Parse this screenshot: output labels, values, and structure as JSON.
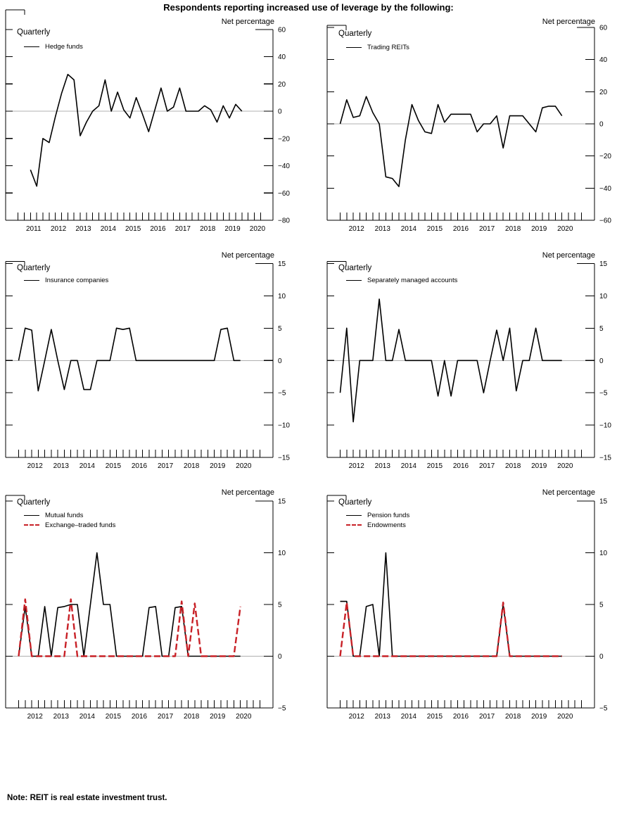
{
  "title": "Respondents reporting increased use of leverage by the following:",
  "note": "Note:  REIT is real estate investment trust.",
  "chart_data": {
    "type": "line",
    "frequency": "Quarterly",
    "colors": {
      "line_black": "#000000",
      "line_red": "#c82127",
      "zero_line": "#b0b0b0"
    },
    "panels": [
      {
        "id": "hedge-funds",
        "ylabel": "Net percentage",
        "freq": "Quarterly",
        "ylim": [
          -80,
          60
        ],
        "ystep": 20,
        "grid": "zero-line-only",
        "legend_position": "top-left",
        "x_axis": {
          "start": "2010Q2",
          "end": "2021Q1",
          "year_labels": [
            2011,
            2012,
            2013,
            2014,
            2015,
            2016,
            2017,
            2018,
            2019,
            2020
          ]
        },
        "series": [
          {
            "name": "Hedge funds",
            "color": "#000000",
            "dash": false,
            "start": "2011Q2",
            "values": [
              -43,
              -55,
              -20,
              -23,
              -4,
              13,
              27,
              23,
              -18,
              -8,
              0,
              4,
              23,
              0,
              14,
              1,
              -5,
              10,
              -2,
              -15,
              1,
              17,
              0,
              3,
              17,
              0,
              0,
              0,
              4,
              1,
              -8,
              4,
              -5,
              5,
              0
            ]
          }
        ]
      },
      {
        "id": "trading-reits",
        "ylabel": "Net percentage",
        "freq": "Quarterly",
        "ylim": [
          -60,
          60
        ],
        "ystep": 20,
        "grid": "zero-line-only",
        "legend_position": "top-left",
        "x_axis": {
          "start": "2011Q2",
          "end": "2021Q3",
          "year_labels": [
            2012,
            2013,
            2014,
            2015,
            2016,
            2017,
            2018,
            2019,
            2020
          ]
        },
        "series": [
          {
            "name": "Trading REITs",
            "color": "#000000",
            "dash": false,
            "start": "2011Q4",
            "values": [
              0,
              15,
              4,
              5,
              17,
              7,
              0,
              -33,
              -34,
              -39,
              -10,
              12,
              2,
              -5,
              -6,
              12,
              1,
              6,
              6,
              6,
              6,
              -5,
              0,
              0,
              5,
              -15,
              5,
              5,
              5,
              0,
              -5,
              10,
              11,
              11,
              5
            ]
          }
        ]
      },
      {
        "id": "insurance-companies",
        "ylabel": "Net percentage",
        "freq": "Quarterly",
        "ylim": [
          -15,
          15
        ],
        "ystep": 5,
        "grid": "zero-line-only",
        "legend_position": "top-left",
        "x_axis": {
          "start": "2011Q2",
          "end": "2021Q3",
          "year_labels": [
            2012,
            2013,
            2014,
            2015,
            2016,
            2017,
            2018,
            2019,
            2020
          ]
        },
        "series": [
          {
            "name": "Insurance companies",
            "color": "#000000",
            "dash": false,
            "start": "2011Q4",
            "values": [
              0,
              5,
              4.7,
              -4.7,
              0,
              4.8,
              0,
              -4.5,
              0,
              0,
              -4.5,
              -4.5,
              0,
              0,
              0,
              5,
              4.8,
              5,
              0,
              0,
              0,
              0,
              0,
              0,
              0,
              0,
              0,
              0,
              0,
              0,
              0,
              4.8,
              5,
              0,
              0
            ]
          }
        ]
      },
      {
        "id": "separately-managed-accounts",
        "ylabel": "Net percentage",
        "freq": "Quarterly",
        "ylim": [
          -15,
          15
        ],
        "ystep": 5,
        "grid": "zero-line-only",
        "legend_position": "top-left",
        "x_axis": {
          "start": "2011Q2",
          "end": "2021Q3",
          "year_labels": [
            2012,
            2013,
            2014,
            2015,
            2016,
            2017,
            2018,
            2019,
            2020
          ]
        },
        "series": [
          {
            "name": "Separately managed accounts",
            "color": "#000000",
            "dash": false,
            "start": "2011Q4",
            "values": [
              -5,
              5,
              -9.5,
              0,
              0,
              0,
              9.5,
              0,
              0,
              4.8,
              0,
              0,
              0,
              0,
              0,
              -5.5,
              0,
              -5.5,
              0,
              0,
              0,
              0,
              -5,
              0,
              4.7,
              0,
              5,
              -4.7,
              0,
              0,
              5,
              0,
              0,
              0,
              0
            ]
          }
        ]
      },
      {
        "id": "mutual-funds-etf",
        "ylabel": "Net percentage",
        "freq": "Quarterly",
        "ylim": [
          -5,
          15
        ],
        "ystep": 5,
        "grid": "zero-line-only",
        "legend_position": "top-left",
        "x_axis": {
          "start": "2011Q2",
          "end": "2021Q3",
          "year_labels": [
            2012,
            2013,
            2014,
            2015,
            2016,
            2017,
            2018,
            2019,
            2020
          ]
        },
        "series": [
          {
            "name": "Mutual funds",
            "color": "#000000",
            "dash": false,
            "start": "2011Q4",
            "values": [
              0,
              4.8,
              0,
              0,
              4.8,
              0,
              4.7,
              4.8,
              5,
              5,
              0,
              5,
              10,
              5,
              5,
              0,
              0,
              0,
              0,
              0,
              4.7,
              4.8,
              0,
              0,
              4.7,
              4.8,
              0,
              0,
              0,
              0,
              0,
              0,
              0,
              0,
              0
            ]
          },
          {
            "name": "Exchange–traded funds",
            "color": "#c82127",
            "dash": true,
            "start": "2011Q4",
            "values": [
              0,
              5.5,
              0,
              0,
              0,
              0,
              0,
              0,
              5.5,
              0,
              0,
              0,
              0,
              0,
              0,
              0,
              0,
              0,
              0,
              0,
              0,
              0,
              0,
              0,
              0,
              5.3,
              0,
              5.1,
              0,
              0,
              0,
              0,
              0,
              0,
              4.8
            ]
          }
        ]
      },
      {
        "id": "pension-endowments",
        "ylabel": "Net percentage",
        "freq": "Quarterly",
        "ylim": [
          -5,
          15
        ],
        "ystep": 5,
        "grid": "zero-line-only",
        "legend_position": "top-left",
        "x_axis": {
          "start": "2011Q2",
          "end": "2021Q3",
          "year_labels": [
            2012,
            2013,
            2014,
            2015,
            2016,
            2017,
            2018,
            2019,
            2020
          ]
        },
        "series": [
          {
            "name": "Pension funds",
            "color": "#000000",
            "dash": false,
            "start": "2011Q4",
            "values": [
              5.3,
              5.3,
              0,
              0,
              4.8,
              5,
              0,
              10,
              0,
              0,
              0,
              0,
              0,
              0,
              0,
              0,
              0,
              0,
              0,
              0,
              0,
              0,
              0,
              0,
              0,
              5,
              0,
              0,
              0,
              0,
              0,
              0,
              0,
              0,
              0
            ]
          },
          {
            "name": "Endowments",
            "color": "#c82127",
            "dash": true,
            "start": "2011Q4",
            "values": [
              0,
              5.2,
              0,
              0,
              0,
              0,
              0,
              0,
              0,
              0,
              0,
              0,
              0,
              0,
              0,
              0,
              0,
              0,
              0,
              0,
              0,
              0,
              0,
              0,
              0,
              5.2,
              0,
              0,
              0,
              0,
              0,
              0,
              0,
              0,
              0
            ]
          }
        ]
      }
    ]
  }
}
